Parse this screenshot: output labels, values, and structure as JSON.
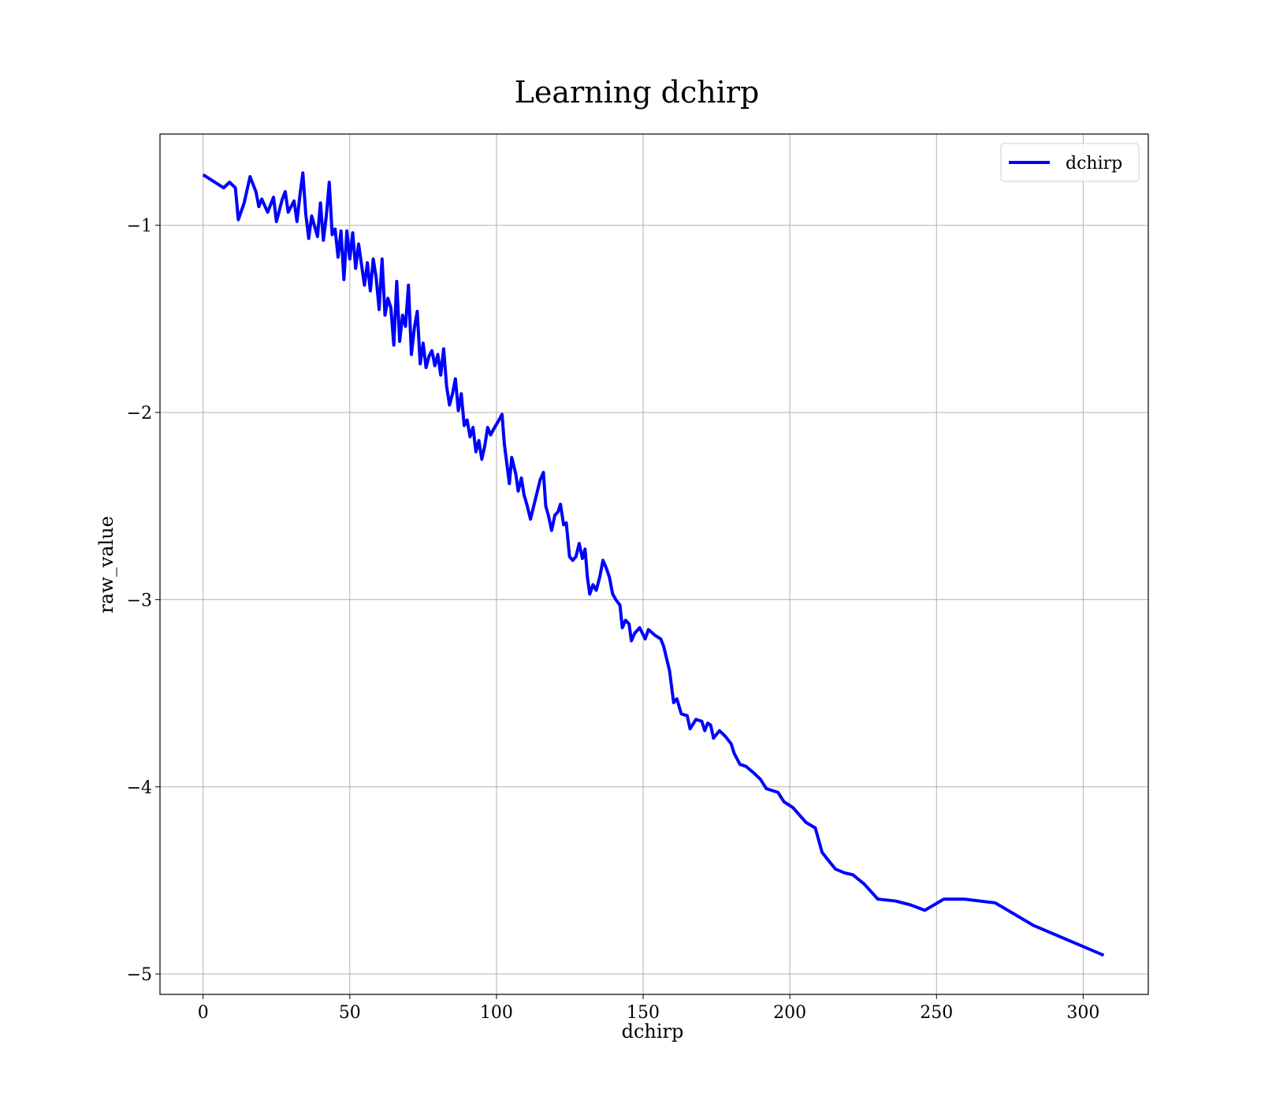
{
  "chart_data": {
    "type": "line",
    "title": "Learning dchirp",
    "xlabel": "dchirp",
    "ylabel": "raw_value",
    "x": [
      0,
      5,
      7,
      9,
      11,
      12,
      14,
      16,
      18,
      19,
      20,
      22,
      24,
      25,
      27,
      28,
      29,
      31,
      32,
      33,
      34,
      35,
      36,
      37,
      39,
      40,
      41,
      42,
      43,
      44,
      45,
      46,
      47,
      48,
      49,
      50,
      51,
      52,
      53,
      55,
      56,
      57,
      58,
      59,
      60,
      61,
      62,
      63,
      64,
      65,
      66,
      67,
      68,
      69,
      70,
      71,
      72,
      73,
      74,
      75,
      76,
      77,
      78,
      79,
      80,
      81,
      82,
      83,
      84,
      85,
      86,
      87,
      88,
      89,
      90,
      91,
      92,
      93,
      94,
      95,
      96,
      97,
      98,
      99,
      100.5,
      101.9,
      102.7,
      104.4,
      105.2,
      106.6,
      107.4,
      108.5,
      109.4,
      110.5,
      111.6,
      112.7,
      113.8,
      114.9,
      116,
      116.8,
      117.7,
      118.8,
      119.9,
      121,
      121.8,
      122.9,
      123.8,
      124.9,
      126,
      127.1,
      128.2,
      129.3,
      130.2,
      131,
      131.8,
      132.9,
      134,
      135.2,
      136.3,
      137.4,
      138.5,
      139.6,
      140.7,
      142.1,
      142.9,
      144,
      145.2,
      146,
      147.1,
      148.8,
      150.7,
      151.8,
      154,
      156,
      157,
      159,
      160.4,
      161.5,
      163,
      165,
      166,
      168,
      170,
      171,
      172,
      173,
      174,
      176,
      178,
      180,
      181,
      183,
      185,
      188,
      190,
      192,
      196,
      198,
      201,
      205.5,
      208.7,
      211,
      213,
      215.6,
      218.7,
      221.5,
      225.4,
      230,
      236,
      241,
      246,
      252.5,
      259.5,
      270,
      283,
      307
    ],
    "series": [
      {
        "name": "dchirp",
        "color": "#0000ff",
        "values": [
          -0.73,
          -0.78,
          -0.8,
          -0.77,
          -0.8,
          -0.97,
          -0.88,
          -0.74,
          -0.82,
          -0.9,
          -0.86,
          -0.93,
          -0.85,
          -0.98,
          -0.86,
          -0.82,
          -0.93,
          -0.87,
          -0.98,
          -0.84,
          -0.72,
          -0.94,
          -1.07,
          -0.95,
          -1.06,
          -0.88,
          -1.08,
          -0.95,
          -0.77,
          -1.05,
          -1.02,
          -1.17,
          -1.03,
          -1.29,
          -1.03,
          -1.18,
          -1.04,
          -1.23,
          -1.1,
          -1.32,
          -1.2,
          -1.35,
          -1.18,
          -1.28,
          -1.45,
          -1.18,
          -1.48,
          -1.39,
          -1.44,
          -1.64,
          -1.3,
          -1.62,
          -1.48,
          -1.54,
          -1.32,
          -1.69,
          -1.55,
          -1.46,
          -1.74,
          -1.63,
          -1.76,
          -1.7,
          -1.67,
          -1.75,
          -1.69,
          -1.8,
          -1.66,
          -1.86,
          -1.96,
          -1.9,
          -1.82,
          -1.99,
          -1.9,
          -2.07,
          -2.04,
          -2.13,
          -2.08,
          -2.21,
          -2.15,
          -2.25,
          -2.18,
          -2.08,
          -2.12,
          -2.09,
          -2.05,
          -2.01,
          -2.17,
          -2.38,
          -2.24,
          -2.33,
          -2.42,
          -2.35,
          -2.44,
          -2.5,
          -2.57,
          -2.5,
          -2.43,
          -2.36,
          -2.32,
          -2.5,
          -2.55,
          -2.63,
          -2.55,
          -2.53,
          -2.49,
          -2.6,
          -2.59,
          -2.77,
          -2.79,
          -2.77,
          -2.7,
          -2.78,
          -2.73,
          -2.88,
          -2.97,
          -2.92,
          -2.95,
          -2.88,
          -2.79,
          -2.83,
          -2.88,
          -2.97,
          -3.0,
          -3.03,
          -3.15,
          -3.11,
          -3.13,
          -3.22,
          -3.18,
          -3.15,
          -3.21,
          -3.16,
          -3.19,
          -3.21,
          -3.25,
          -3.38,
          -3.55,
          -3.53,
          -3.61,
          -3.62,
          -3.69,
          -3.64,
          -3.65,
          -3.7,
          -3.66,
          -3.67,
          -3.74,
          -3.7,
          -3.73,
          -3.77,
          -3.82,
          -3.88,
          -3.89,
          -3.93,
          -3.96,
          -4.01,
          -4.03,
          -4.08,
          -4.11,
          -4.19,
          -4.22,
          -4.35,
          -4.39,
          -4.44,
          -4.46,
          -4.47,
          -4.52,
          -4.6,
          -4.61,
          -4.63,
          -4.66,
          -4.6,
          -4.6,
          -4.62,
          -4.74,
          -4.9
        ]
      }
    ],
    "xlim": [
      -14.7,
      322.2
    ],
    "ylim": [
      -5.109,
      -0.5125
    ],
    "xticks": [
      0,
      50,
      100,
      150,
      200,
      250,
      300
    ],
    "yticks": [
      {
        "value": -5,
        "label": "−5"
      },
      {
        "value": -4,
        "label": "−4"
      },
      {
        "value": -3,
        "label": "−3"
      },
      {
        "value": -2,
        "label": "−2"
      },
      {
        "value": -1,
        "label": "−1"
      }
    ],
    "grid": true,
    "legend": "upper right"
  }
}
